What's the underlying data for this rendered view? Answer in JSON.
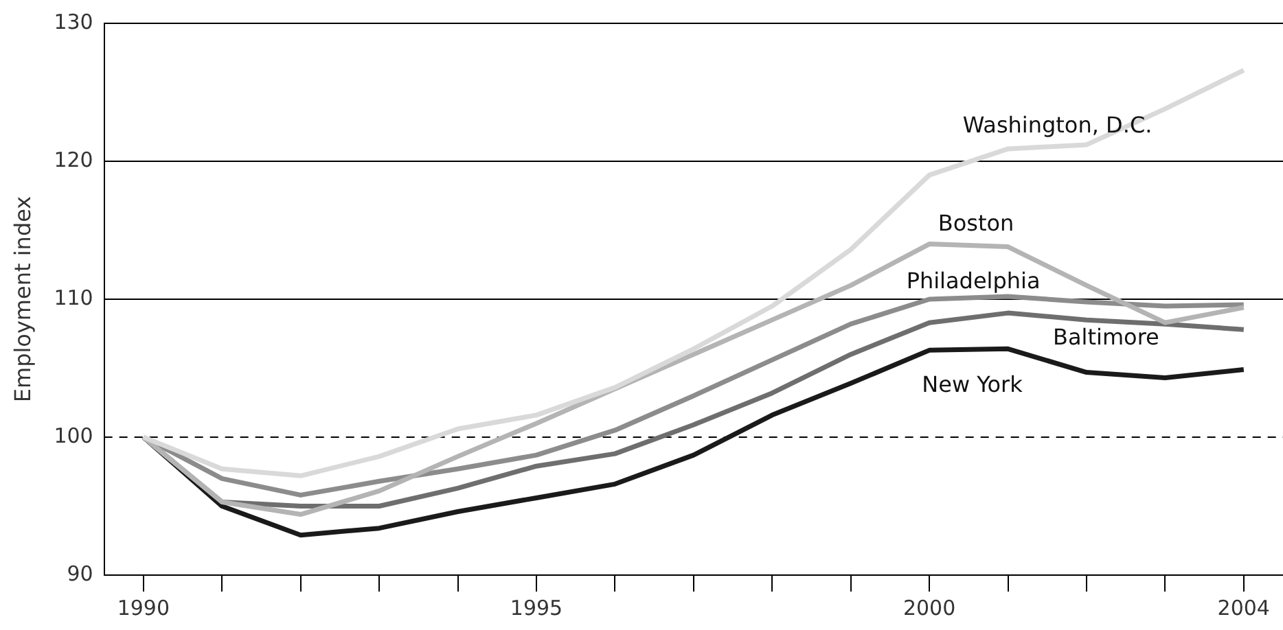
{
  "chart_data": {
    "type": "line",
    "ylabel": "Employment index",
    "x": [
      1990,
      1991,
      1992,
      1993,
      1994,
      1995,
      1996,
      1997,
      1998,
      1999,
      2000,
      2001,
      2002,
      2003,
      2004
    ],
    "series": [
      {
        "name": "Washington, D.C.",
        "color": "#d9d9d9",
        "values": [
          100,
          97.7,
          97.2,
          98.6,
          100.6,
          101.6,
          103.6,
          106.4,
          109.5,
          113.6,
          119.0,
          120.9,
          121.2,
          123.8,
          126.6
        ]
      },
      {
        "name": "Boston",
        "color": "#b4b4b4",
        "values": [
          100,
          95.3,
          94.4,
          96.1,
          98.6,
          101.0,
          103.5,
          106.0,
          108.5,
          111.0,
          114.0,
          113.8,
          111.0,
          108.3,
          109.4
        ]
      },
      {
        "name": "Philadelphia",
        "color": "#8c8c8c",
        "values": [
          100,
          97.0,
          95.8,
          96.8,
          97.7,
          98.7,
          100.5,
          103.0,
          105.6,
          108.2,
          110.0,
          110.2,
          109.8,
          109.5,
          109.6
        ]
      },
      {
        "name": "Baltimore",
        "color": "#6e6e6e",
        "values": [
          100,
          95.3,
          95.0,
          95.0,
          96.3,
          97.9,
          98.8,
          100.9,
          103.2,
          106.0,
          108.3,
          109.0,
          108.5,
          108.2,
          107.8
        ]
      },
      {
        "name": "New York",
        "color": "#1a1a1a",
        "values": [
          100,
          95.0,
          92.9,
          93.4,
          94.6,
          95.6,
          96.6,
          98.7,
          101.6,
          103.9,
          106.3,
          106.4,
          104.7,
          104.3,
          104.9
        ]
      }
    ],
    "xlim": [
      1989.5,
      2004.5
    ],
    "xticks": [
      1990,
      {
        "value": 1991,
        "label": null
      },
      {
        "value": 1992,
        "label": null
      },
      {
        "value": 1993,
        "label": null
      },
      {
        "value": 1994,
        "label": null
      },
      1995,
      {
        "value": 1996,
        "label": null
      },
      {
        "value": 1997,
        "label": null
      },
      {
        "value": 1998,
        "label": null
      },
      {
        "value": 1999,
        "label": null
      },
      2000,
      {
        "value": 2001,
        "label": null
      },
      {
        "value": 2002,
        "label": null
      },
      {
        "value": 2003,
        "label": null
      },
      2004
    ],
    "ylim": [
      90,
      130
    ],
    "yticks": [
      90,
      100,
      110,
      120,
      130
    ],
    "grid": "y",
    "legend": false,
    "marker": "none",
    "line_style": "solid",
    "ref_lines": [
      {
        "axis": "y",
        "value": 100,
        "line_style": "dashed",
        "color": "#000000"
      }
    ]
  }
}
